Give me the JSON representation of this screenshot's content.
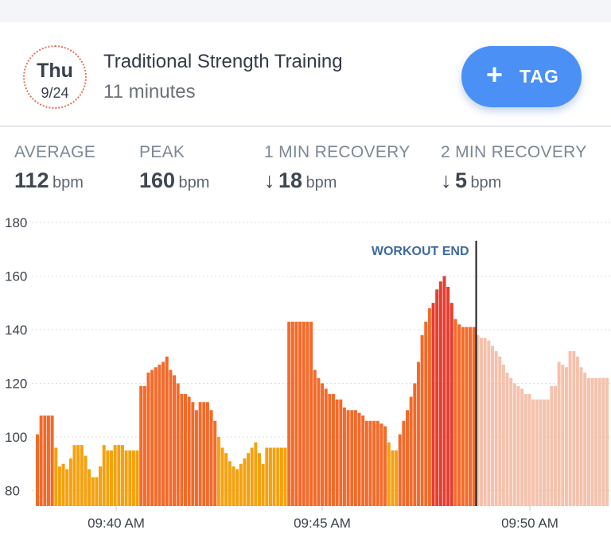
{
  "workout": {
    "day": "Thu",
    "date": "9/24",
    "title": "Traditional Strength Training",
    "duration": "11 minutes",
    "tag_button": {
      "icon": "plus-icon",
      "label": "TAG"
    }
  },
  "stats": [
    {
      "label": "AVERAGE",
      "value": "112",
      "unit": "bpm",
      "arrow": ""
    },
    {
      "label": "PEAK",
      "value": "160",
      "unit": "bpm",
      "arrow": ""
    },
    {
      "label": "1 MIN RECOVERY",
      "value": "18",
      "unit": "bpm",
      "arrow": "↓"
    },
    {
      "label": "2 MIN RECOVERY",
      "value": "5",
      "unit": "bpm",
      "arrow": "↓"
    }
  ],
  "colors": {
    "accent": "#4a90f5",
    "workout_end_label": "#3f6a9e",
    "zone_low": "#f5a10f",
    "zone_mid": "#f36a2a",
    "zone_high": "#e53e31",
    "recovery": "#f4c2ad"
  },
  "chart_data": {
    "type": "bar",
    "y_unit": "bpm",
    "ylim": [
      75,
      180
    ],
    "y_ticks": [
      80,
      100,
      120,
      140,
      160,
      180
    ],
    "x_ticks": [
      "09:40 AM",
      "09:45 AM",
      "09:50 AM"
    ],
    "grid": true,
    "annotation": "WORKOUT END",
    "workout_values": [
      101,
      108,
      108,
      108,
      108,
      96,
      89,
      90,
      88,
      92,
      97,
      97,
      97,
      93,
      88,
      85,
      85,
      89,
      97,
      95,
      95,
      97,
      97,
      97,
      95,
      95,
      95,
      95,
      119,
      119,
      124,
      125,
      126,
      127,
      128,
      130,
      125,
      123,
      120,
      116,
      116,
      115,
      113,
      110,
      113,
      113,
      113,
      110,
      106,
      100,
      96,
      94,
      91,
      89,
      88,
      90,
      92,
      94,
      96,
      98,
      94,
      90,
      96,
      96,
      96,
      96,
      96,
      96,
      143,
      143,
      143,
      143,
      143,
      143,
      143,
      125,
      122,
      120,
      118,
      116,
      116,
      114,
      114,
      111,
      110,
      110,
      110,
      109,
      108,
      106,
      106,
      106,
      106,
      105,
      104,
      98,
      95,
      95,
      101,
      106,
      110,
      115,
      120,
      128,
      138,
      143,
      148,
      150,
      155,
      158,
      160,
      156,
      150,
      144,
      142,
      141,
      141,
      141,
      141
    ],
    "recovery_values": [
      138,
      137,
      137,
      136,
      134,
      132,
      130,
      127,
      124,
      122,
      120,
      119,
      118,
      116,
      116,
      114,
      114,
      114,
      114,
      114,
      119,
      119,
      128,
      127,
      126,
      132,
      132,
      130,
      126,
      124,
      122,
      122,
      122,
      122,
      122,
      122
    ]
  }
}
